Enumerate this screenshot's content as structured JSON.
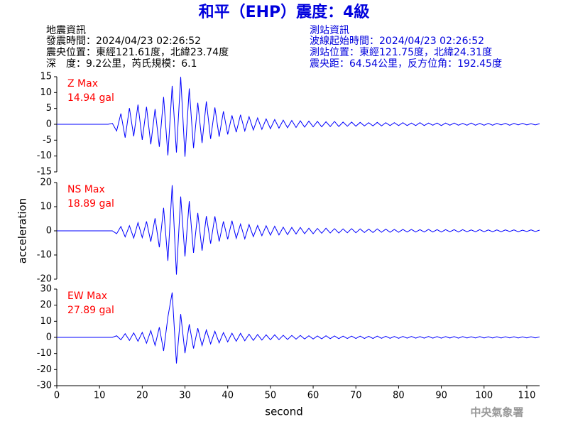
{
  "header": {
    "title": "和平（EHP）震度：4級",
    "left": [
      "地震資訊",
      "發震時間：2024/04/23 02:26:52",
      "震央位置：東經121.61度，北緯23.74度",
      "深　度：9.2公里，芮氏規模：6.1"
    ],
    "right": [
      "測站資訊",
      "波線起始時間：2024/04/23 02:26:52",
      "測站位置：東經121.75度，北緯24.31度",
      "震央距：64.54公里，反方位角：192.45度"
    ]
  },
  "footer": "中央氣象署",
  "chart_data": [
    {
      "type": "line",
      "annotation": "14.94 gal",
      "annotation_color": "#ff0000",
      "xlim": [
        0,
        113
      ],
      "ylim": [
        -15,
        15
      ],
      "yticks": [
        -15,
        -10,
        -5,
        0,
        5,
        10,
        15
      ],
      "x": [
        0,
        1,
        2,
        3,
        4,
        5,
        6,
        7,
        8,
        9,
        10,
        11,
        12,
        13,
        14,
        15,
        16,
        17,
        18,
        19,
        20,
        21,
        22,
        23,
        24,
        25,
        26,
        27,
        28,
        29,
        30,
        31,
        32,
        33,
        34,
        35,
        36,
        37,
        38,
        39,
        40,
        41,
        42,
        43,
        44,
        45,
        46,
        47,
        48,
        49,
        50,
        51,
        52,
        53,
        54,
        55,
        56,
        57,
        58,
        59,
        60,
        61,
        62,
        63,
        64,
        65,
        66,
        67,
        68,
        69,
        70,
        71,
        72,
        73,
        74,
        75,
        76,
        77,
        78,
        79,
        80,
        81,
        82,
        83,
        84,
        85,
        86,
        87,
        88,
        89,
        90,
        91,
        92,
        93,
        94,
        95,
        96,
        97,
        98,
        99,
        100,
        101,
        102,
        103,
        104,
        105,
        106,
        107,
        108,
        109,
        110,
        111,
        112,
        113
      ],
      "series": [
        {
          "name": "Z Max",
          "color": "#0000ff",
          "values": [
            0,
            0,
            0,
            0,
            0,
            0,
            0,
            0,
            0,
            0,
            0,
            0,
            0,
            0.3,
            -2.1,
            3.4,
            -4.2,
            5.1,
            -3.8,
            6.2,
            -4.9,
            5.5,
            -6.3,
            4.8,
            -7.1,
            8.6,
            -9.8,
            12.1,
            -8.9,
            14.94,
            -10.2,
            11.3,
            -7.5,
            6.8,
            -5.9,
            7.2,
            -4.6,
            5.3,
            -3.9,
            4.1,
            -3.2,
            2.8,
            -2.5,
            3.0,
            -2.1,
            2.4,
            -1.8,
            2.0,
            -1.6,
            1.7,
            -1.4,
            1.5,
            -1.2,
            1.3,
            -1.1,
            1.2,
            -1.0,
            1.1,
            -0.9,
            1.0,
            -0.8,
            0.9,
            -0.8,
            0.8,
            -0.7,
            0.9,
            -0.7,
            0.7,
            -0.6,
            0.7,
            -0.6,
            0.6,
            -0.5,
            0.5,
            -0.5,
            0.6,
            -0.5,
            0.5,
            -0.4,
            0.5,
            -0.4,
            0.5,
            -0.4,
            0.4,
            -0.4,
            0.5,
            -0.4,
            0.4,
            -0.3,
            0.4,
            -0.4,
            0.4,
            -0.3,
            0.4,
            -0.3,
            0.3,
            -0.3,
            0.4,
            -0.3,
            0.3,
            -0.3,
            0.3,
            -0.3,
            0.3,
            -0.2,
            0.3,
            -0.3,
            0.3,
            -0.2,
            0.3,
            -0.2,
            0.2,
            -0.2,
            0.2
          ]
        }
      ]
    },
    {
      "type": "line",
      "annotation": "18.89 gal",
      "annotation_color": "#ff0000",
      "ylabel": "acceleration",
      "xlim": [
        0,
        113
      ],
      "ylim": [
        -20,
        20
      ],
      "yticks": [
        -20,
        -10,
        0,
        10,
        20
      ],
      "x": [
        0,
        1,
        2,
        3,
        4,
        5,
        6,
        7,
        8,
        9,
        10,
        11,
        12,
        13,
        14,
        15,
        16,
        17,
        18,
        19,
        20,
        21,
        22,
        23,
        24,
        25,
        26,
        27,
        28,
        29,
        30,
        31,
        32,
        33,
        34,
        35,
        36,
        37,
        38,
        39,
        40,
        41,
        42,
        43,
        44,
        45,
        46,
        47,
        48,
        49,
        50,
        51,
        52,
        53,
        54,
        55,
        56,
        57,
        58,
        59,
        60,
        61,
        62,
        63,
        64,
        65,
        66,
        67,
        68,
        69,
        70,
        71,
        72,
        73,
        74,
        75,
        76,
        77,
        78,
        79,
        80,
        81,
        82,
        83,
        84,
        85,
        86,
        87,
        88,
        89,
        90,
        91,
        92,
        93,
        94,
        95,
        96,
        97,
        98,
        99,
        100,
        101,
        102,
        103,
        104,
        105,
        106,
        107,
        108,
        109,
        110,
        111,
        112,
        113
      ],
      "series": [
        {
          "name": "NS Max",
          "color": "#0000ff",
          "values": [
            0,
            0,
            0,
            0,
            0,
            0,
            0,
            0,
            0,
            0,
            0,
            0,
            0,
            0,
            -1.2,
            1.8,
            -2.5,
            2.1,
            -3.0,
            3.4,
            -2.8,
            3.9,
            -4.5,
            5.2,
            -6.8,
            9.5,
            -12.4,
            18.89,
            -18.1,
            14.2,
            -10.6,
            12.3,
            -9.1,
            7.4,
            -8.2,
            6.1,
            -5.3,
            6.0,
            -4.4,
            3.9,
            -3.5,
            4.2,
            -3.1,
            2.8,
            -3.3,
            2.6,
            -2.4,
            2.2,
            -2.0,
            2.1,
            -1.8,
            1.9,
            -1.7,
            1.5,
            -1.6,
            1.4,
            -1.3,
            1.4,
            -1.2,
            1.1,
            -1.2,
            1.0,
            -1.0,
            1.1,
            -0.9,
            0.9,
            -0.9,
            0.8,
            -0.8,
            0.9,
            -0.8,
            0.8,
            -0.7,
            0.7,
            -0.7,
            0.8,
            -0.6,
            0.7,
            -0.6,
            0.6,
            -0.6,
            0.6,
            -0.5,
            0.6,
            -0.5,
            0.5,
            -0.5,
            0.6,
            -0.5,
            0.5,
            -0.5,
            0.5,
            -0.4,
            0.5,
            -0.5,
            0.5,
            -0.4,
            0.4,
            -0.4,
            0.5,
            -0.4,
            0.4,
            -0.4,
            0.4,
            -0.4,
            0.4,
            -0.3,
            0.4,
            -0.4,
            0.3,
            -0.3,
            0.4,
            -0.3,
            0.3
          ]
        }
      ]
    },
    {
      "type": "line",
      "annotation": "27.89 gal",
      "annotation_color": "#ff0000",
      "xlabel": "second",
      "xlim": [
        0,
        113
      ],
      "xticks": [
        0,
        10,
        20,
        30,
        40,
        50,
        60,
        70,
        80,
        90,
        100,
        110
      ],
      "ylim": [
        -30,
        30
      ],
      "yticks": [
        -30,
        -20,
        -10,
        0,
        10,
        20,
        30
      ],
      "x": [
        0,
        1,
        2,
        3,
        4,
        5,
        6,
        7,
        8,
        9,
        10,
        11,
        12,
        13,
        14,
        15,
        16,
        17,
        18,
        19,
        20,
        21,
        22,
        23,
        24,
        25,
        26,
        27,
        28,
        29,
        30,
        31,
        32,
        33,
        34,
        35,
        36,
        37,
        38,
        39,
        40,
        41,
        42,
        43,
        44,
        45,
        46,
        47,
        48,
        49,
        50,
        51,
        52,
        53,
        54,
        55,
        56,
        57,
        58,
        59,
        60,
        61,
        62,
        63,
        64,
        65,
        66,
        67,
        68,
        69,
        70,
        71,
        72,
        73,
        74,
        75,
        76,
        77,
        78,
        79,
        80,
        81,
        82,
        83,
        84,
        85,
        86,
        87,
        88,
        89,
        90,
        91,
        92,
        93,
        94,
        95,
        96,
        97,
        98,
        99,
        100,
        101,
        102,
        103,
        104,
        105,
        106,
        107,
        108,
        109,
        110,
        111,
        112,
        113
      ],
      "series": [
        {
          "name": "EW Max",
          "color": "#0000ff",
          "values": [
            0,
            0,
            0,
            0,
            0,
            0,
            0,
            0,
            0,
            0,
            0,
            0,
            0,
            0,
            1.0,
            -1.5,
            2.3,
            -1.9,
            2.8,
            -2.4,
            3.1,
            -3.6,
            4.2,
            -5.0,
            6.3,
            -8.4,
            12.6,
            27.89,
            -16.2,
            14.5,
            -9.8,
            8.2,
            -6.9,
            5.7,
            -5.1,
            4.6,
            -4.0,
            3.8,
            -3.4,
            3.0,
            -2.8,
            2.6,
            -2.4,
            2.5,
            -2.1,
            2.0,
            -1.9,
            1.8,
            -1.7,
            1.6,
            -1.5,
            1.6,
            -1.4,
            1.3,
            -1.3,
            1.2,
            -1.1,
            1.2,
            -1.0,
            1.0,
            -1.0,
            0.9,
            -0.9,
            1.0,
            -0.8,
            0.9,
            -0.8,
            0.8,
            -0.7,
            0.8,
            -0.7,
            0.8,
            -0.7,
            0.7,
            -0.7,
            0.8,
            -0.6,
            0.7,
            -0.6,
            0.6,
            -0.6,
            0.6,
            -0.5,
            0.6,
            -0.5,
            0.5,
            -0.5,
            0.6,
            -0.5,
            0.5,
            -0.5,
            0.5,
            -0.4,
            0.5,
            -0.5,
            0.5,
            -0.4,
            0.4,
            -0.4,
            0.5,
            -0.4,
            0.4,
            -0.4,
            0.4,
            -0.4,
            0.4,
            -0.3,
            0.4,
            -0.4,
            0.3,
            -0.3,
            0.4,
            -0.3,
            0.3
          ]
        }
      ]
    }
  ]
}
